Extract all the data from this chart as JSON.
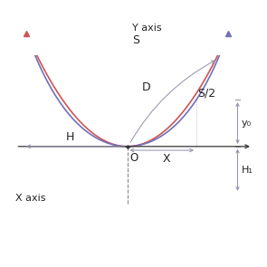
{
  "bg_color": "#ffffff",
  "catenary_color": "#7070bb",
  "parabola_color": "#cc5555",
  "dim_color": "#9090aa",
  "axis_color": "#333333",
  "catenary_a": 0.6,
  "half_span": 1.05,
  "labels": {
    "Y_axis": "Y axis",
    "X_axis": "X axis",
    "S": "S",
    "D": "D",
    "S2": "S/2",
    "X": "X",
    "y0": "y₀",
    "Hy": "H₁",
    "H": "H",
    "O": "O"
  },
  "xlim": [
    -1.32,
    1.45
  ],
  "ylim": [
    -0.68,
    0.95
  ]
}
